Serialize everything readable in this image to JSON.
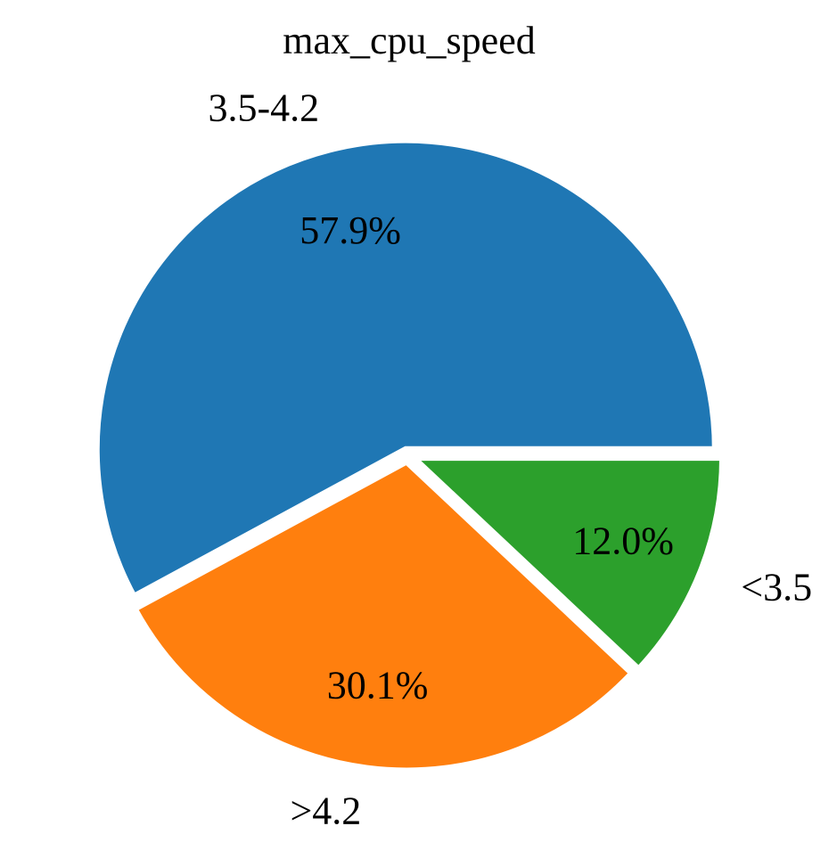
{
  "chart_data": {
    "type": "pie",
    "title": "max_cpu_speed",
    "slices": [
      {
        "label": "3.5-4.2",
        "value": 57.9,
        "pct_label": "57.9%",
        "color": "#1f77b4"
      },
      {
        "label": ">4.2",
        "value": 30.1,
        "pct_label": "30.1%",
        "color": "#ff7f0e"
      },
      {
        "label": "<3.5",
        "value": 12.0,
        "pct_label": "12.0%",
        "color": "#2ca02c"
      }
    ],
    "start_angle_deg": 0,
    "direction": "counterclockwise",
    "exploded": true,
    "legend": "none"
  }
}
